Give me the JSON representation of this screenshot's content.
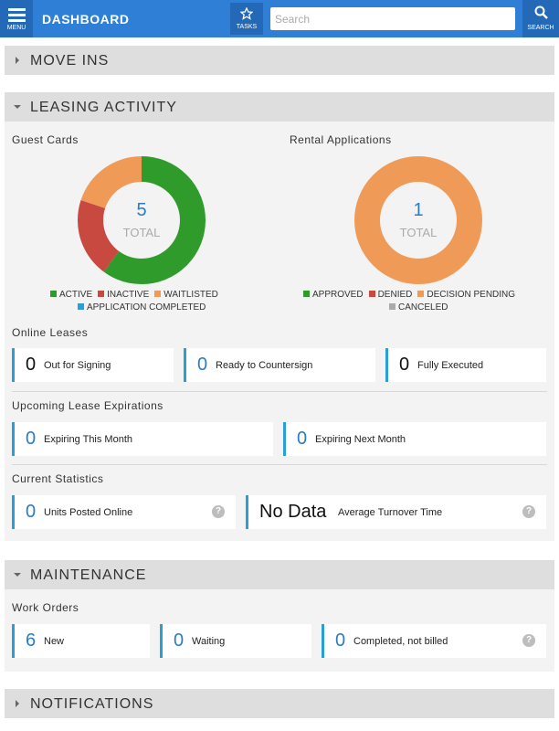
{
  "header": {
    "menu_label": "MENU",
    "title": "DASHBOARD",
    "tasks_label": "TASKS",
    "search_placeholder": "Search",
    "search_label": "SEARCH"
  },
  "move_ins": {
    "title": "MOVE INS"
  },
  "leasing_activity": {
    "title": "LEASING ACTIVITY",
    "guest_cards": {
      "title": "Guest Cards",
      "total": 5,
      "total_label": "TOTAL",
      "segments": [
        {
          "name": "ACTIVE",
          "color": "#2e9b2a",
          "value": 3
        },
        {
          "name": "INACTIVE",
          "color": "#c8493f",
          "value": 1
        },
        {
          "name": "WAITLISTED",
          "color": "#f09a58",
          "value": 1
        },
        {
          "name": "APPLICATION COMPLETED",
          "color": "#2a9fd6",
          "value": 0
        }
      ]
    },
    "rental_applications": {
      "title": "Rental Applications",
      "total": 1,
      "total_label": "TOTAL",
      "segments": [
        {
          "name": "APPROVED",
          "color": "#2e9b2a",
          "value": 0
        },
        {
          "name": "DENIED",
          "color": "#c8493f",
          "value": 0
        },
        {
          "name": "DECISION PENDING",
          "color": "#f09a58",
          "value": 1
        },
        {
          "name": "CANCELED",
          "color": "#aaaaaa",
          "value": 0
        }
      ]
    },
    "online_leases": {
      "title": "Online Leases",
      "tiles": [
        {
          "value": 0,
          "label": "Out for Signing"
        },
        {
          "value": 0,
          "label": "Ready to Countersign"
        },
        {
          "value": 0,
          "label": "Fully Executed"
        }
      ]
    },
    "upcoming_lease_expirations": {
      "title": "Upcoming Lease Expirations",
      "tiles": [
        {
          "value": 0,
          "label": "Expiring This Month"
        },
        {
          "value": 0,
          "label": "Expiring Next Month"
        }
      ]
    },
    "current_statistics": {
      "title": "Current Statistics",
      "tiles": [
        {
          "value": 0,
          "label": "Units Posted Online",
          "help": "?"
        },
        {
          "value": "No Data",
          "label": "Average Turnover Time",
          "help": "?"
        }
      ]
    }
  },
  "maintenance": {
    "title": "MAINTENANCE",
    "work_orders": {
      "title": "Work Orders",
      "tiles": [
        {
          "value": 6,
          "label": "New"
        },
        {
          "value": 0,
          "label": "Waiting"
        },
        {
          "value": 0,
          "label": "Completed, not billed",
          "help": "?"
        }
      ]
    }
  },
  "notifications": {
    "title": "NOTIFICATIONS"
  }
}
